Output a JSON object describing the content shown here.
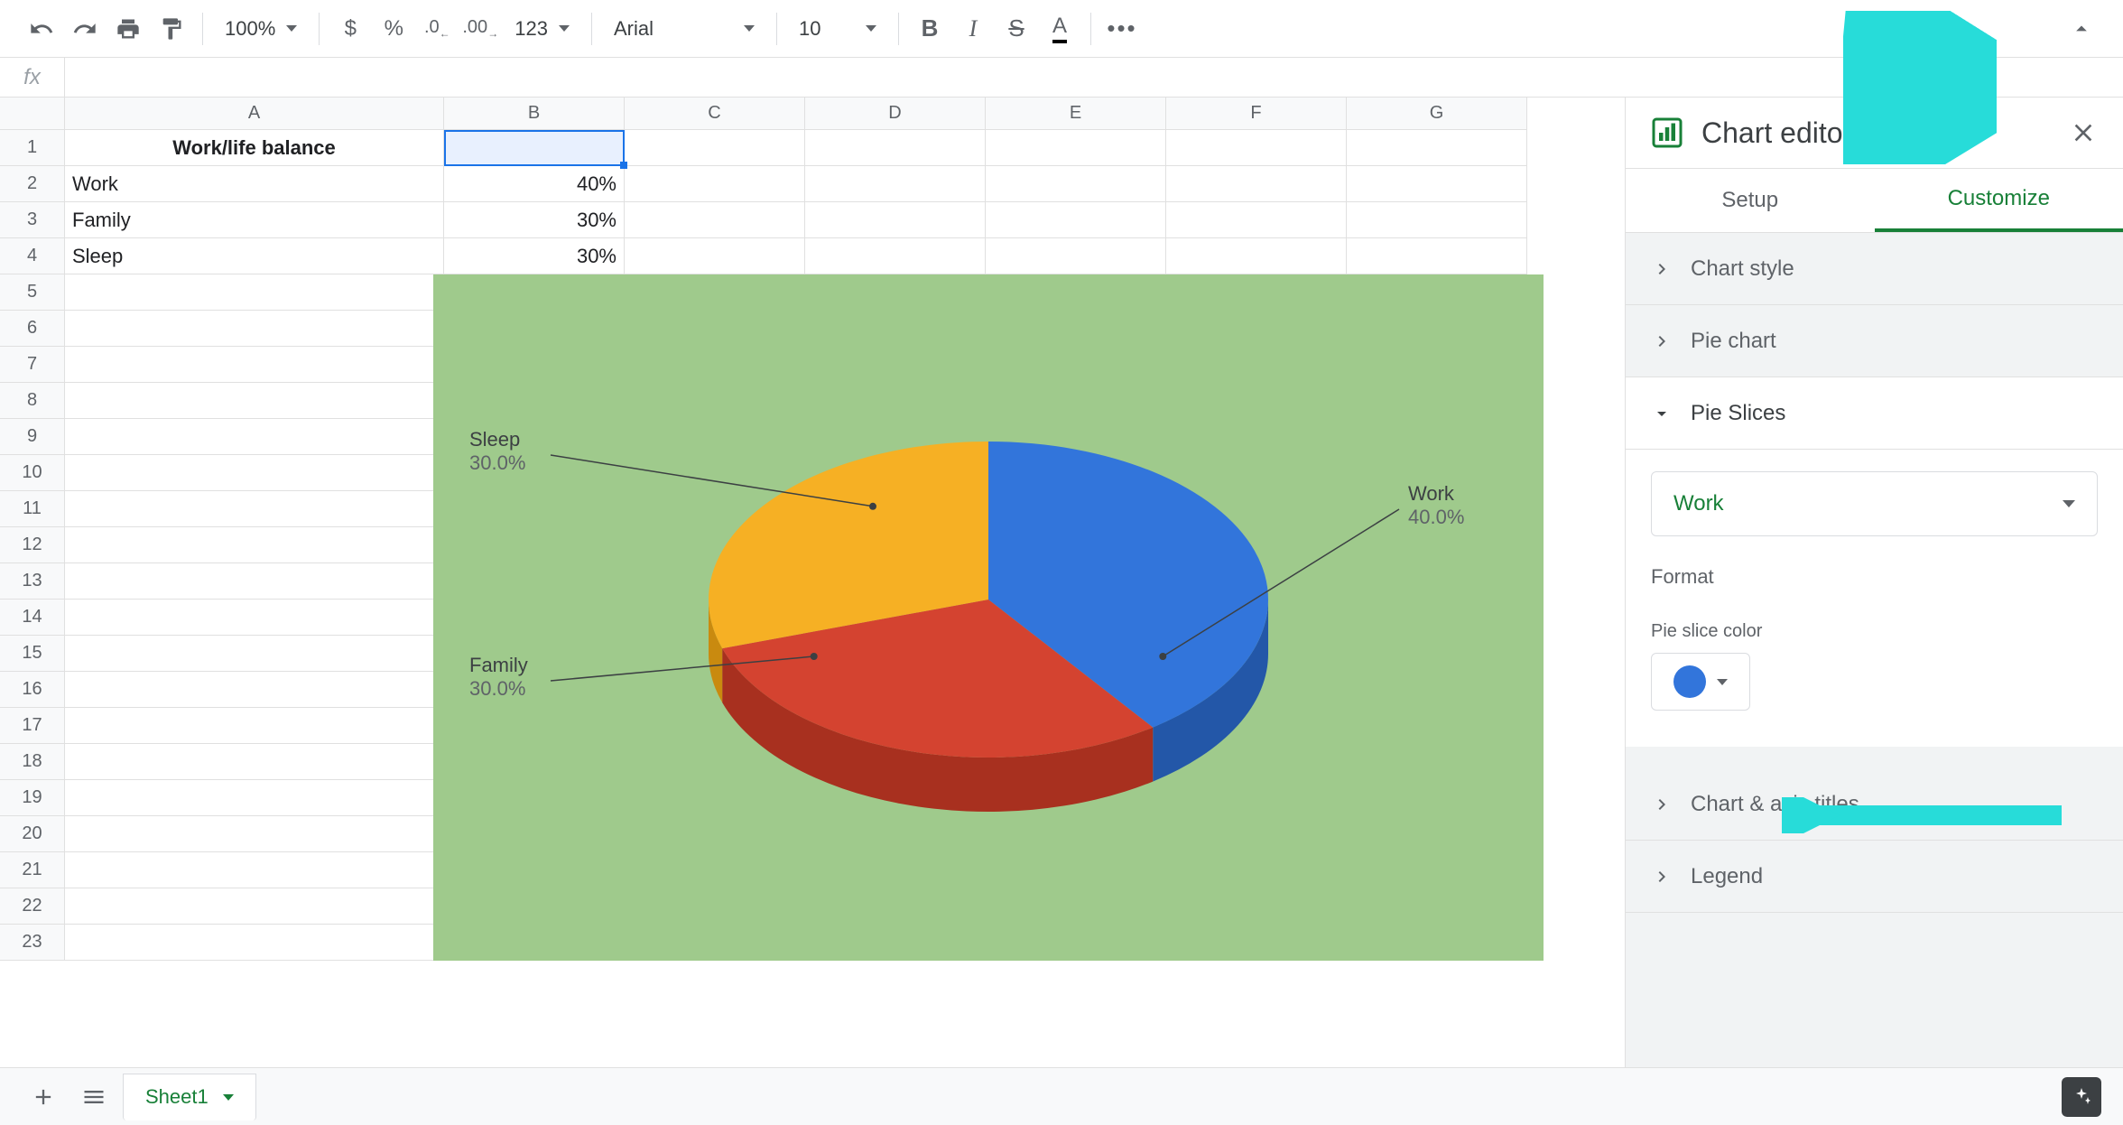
{
  "toolbar": {
    "zoom": "100%",
    "font": "Arial",
    "font_size": "10"
  },
  "formula_bar": {
    "fx": "fx",
    "value": ""
  },
  "columns": {
    "labels": [
      "A",
      "B",
      "C",
      "D",
      "E",
      "F",
      "G"
    ],
    "widths": [
      420,
      200,
      200,
      200,
      200,
      200,
      200
    ]
  },
  "rows": {
    "count": 23,
    "data": {
      "1": {
        "A": "Work/life balance"
      },
      "2": {
        "A": "Work",
        "B": "40%"
      },
      "3": {
        "A": "Family",
        "B": "30%"
      },
      "4": {
        "A": "Sleep",
        "B": "30%"
      }
    },
    "selected": "B1"
  },
  "chart": {
    "type": "pie",
    "is_3d": true,
    "background_color": "#9fca8c",
    "slices": [
      {
        "label": "Work",
        "value": 40.0,
        "pct_label": "40.0%",
        "color": "#3275db",
        "side_color": "#2357a8"
      },
      {
        "label": "Family",
        "value": 30.0,
        "pct_label": "30.0%",
        "color": "#d44330",
        "side_color": "#a8301f"
      },
      {
        "label": "Sleep",
        "value": 30.0,
        "pct_label": "30.0%",
        "color": "#f6b024",
        "side_color": "#c98a0f"
      }
    ],
    "label_color": "#3c4043",
    "label_fontsize": 22,
    "leader_color": "#3c4043"
  },
  "editor": {
    "title": "Chart editor",
    "tabs": {
      "setup": "Setup",
      "customize": "Customize",
      "active": "customize"
    },
    "sections": {
      "chart_style": "Chart style",
      "pie_chart": "Pie chart",
      "pie_slices": "Pie Slices",
      "chart_axis": "Chart & axis titles",
      "legend": "Legend"
    },
    "pie_slices": {
      "selected_slice": "Work",
      "format_label": "Format",
      "color_label": "Pie slice color",
      "color_value": "#3275db"
    }
  },
  "bottom": {
    "sheet_name": "Sheet1"
  },
  "annotation_color": "#27dcd9"
}
